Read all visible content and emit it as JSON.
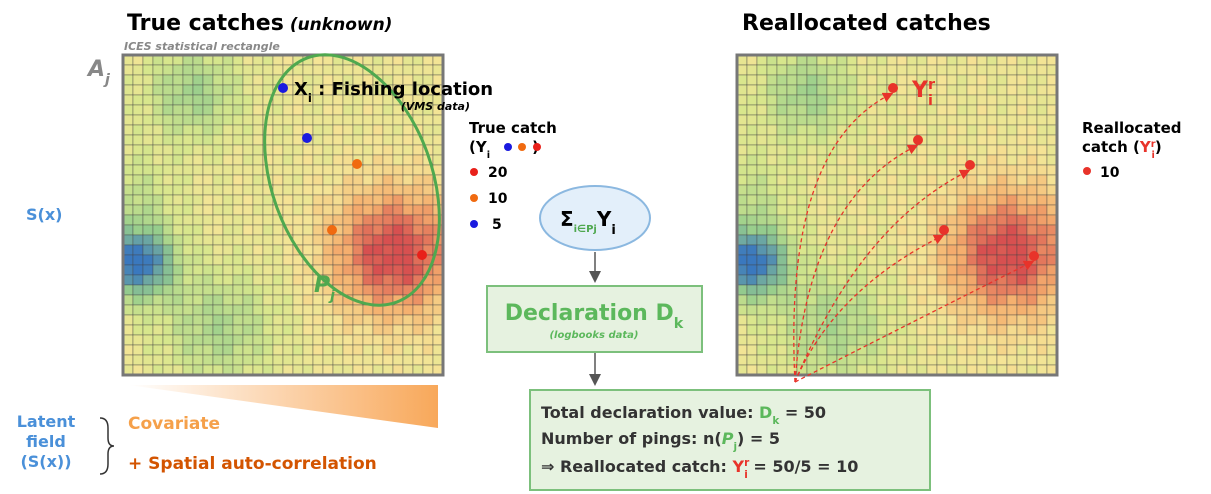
{
  "left_title": {
    "main": "True catches",
    "note": "(unknown)"
  },
  "rectangle_label": "ICES statistical rectangle",
  "area_label": {
    "main": "A",
    "sub": "j"
  },
  "fishing_location": {
    "main": "X",
    "sub": "i",
    "rest": " : Fishing location",
    "source": "(VMS data)"
  },
  "polygon_label": {
    "main": "P",
    "sub": "j"
  },
  "field_label": "S(x)",
  "true_catch_legend": {
    "title": "True catch",
    "open": "(Y",
    "sub": "i",
    "close": ")",
    "items": [
      "20",
      "10",
      "5"
    ]
  },
  "sum_node": {
    "sigma": "Σ",
    "sub": "i∈Pj",
    "main": "Y",
    "sub2": "i"
  },
  "declaration": {
    "main": "Declaration D",
    "sub": "k",
    "source": "(logbooks data)"
  },
  "right_title": "Reallocated catches",
  "reallocated_label": {
    "main": "Y",
    "sup": "r",
    "sub": "i"
  },
  "reallocated_legend": {
    "title": "Reallocated",
    "open": "catch (",
    "sym": "Y",
    "sup": "r",
    "sub": "i",
    "close": ")",
    "items": [
      "10"
    ]
  },
  "latent": {
    "lines": [
      "Latent",
      "field",
      "(S(x))"
    ],
    "covariate": "Covariate",
    "spatial": "+ Spatial auto-correlation"
  },
  "summary": {
    "line1": {
      "text": "Total declaration value: ",
      "sym": "D",
      "sub": "k",
      "rest": " = 50"
    },
    "line2": {
      "text": "Number of pings: n(",
      "sym": "P",
      "sub": "j",
      "rest": ") = 5"
    },
    "line3": {
      "text": "⇒ Reallocated catch: ",
      "sym": "Y",
      "sup": "r",
      "sub": "i",
      "rest": " = 50/5 = 10"
    }
  }
}
